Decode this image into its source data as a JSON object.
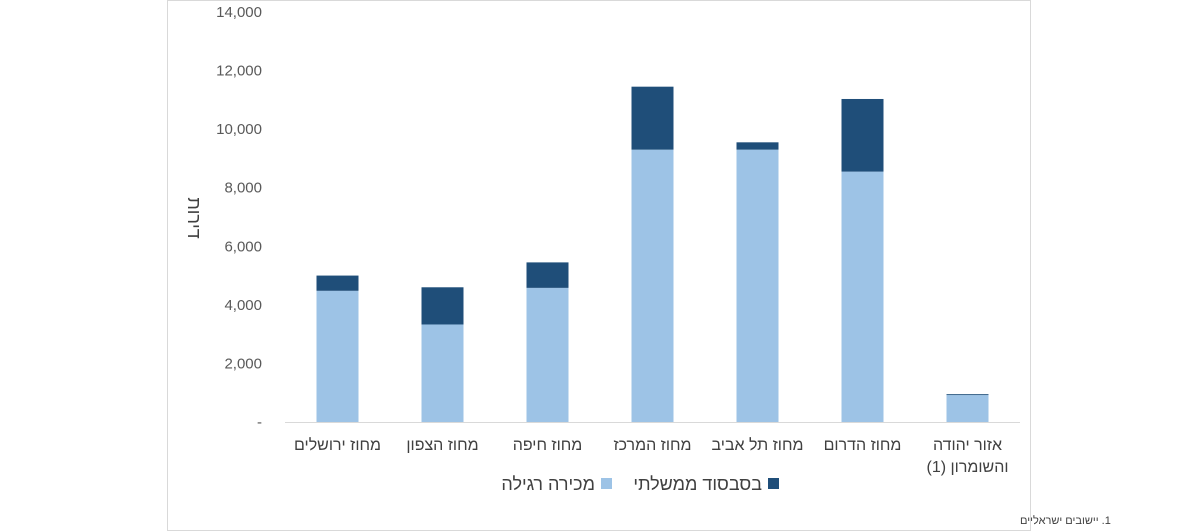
{
  "chart_data": {
    "type": "bar",
    "stacked": true,
    "ylabel": "דירות",
    "ylim": [
      0,
      14000
    ],
    "yticks": [
      0,
      2000,
      4000,
      6000,
      8000,
      10000,
      12000,
      14000
    ],
    "ytick_labels": [
      "-",
      "2,000",
      "4,000",
      "6,000",
      "8,000",
      "10,000",
      "12,000",
      "14,000"
    ],
    "categories": [
      [
        "מחוז ירושלים"
      ],
      [
        "מחוז הצפון"
      ],
      [
        "מחוז חיפה"
      ],
      [
        "מחוז המרכז"
      ],
      [
        "מחוז תל אביב"
      ],
      [
        "מחוז הדרום"
      ],
      [
        "אזור יהודה",
        "והשומרון (1)"
      ]
    ],
    "series": [
      {
        "name": "מכירה רגילה",
        "color": "#9dc3e6",
        "values": [
          4480,
          3330,
          4580,
          9300,
          9300,
          8550,
          920
        ]
      },
      {
        "name": "בסבסוד ממשלתי",
        "color": "#1f4e79",
        "values": [
          520,
          1270,
          870,
          2150,
          250,
          2480,
          30
        ]
      }
    ],
    "legend_position": "bottom",
    "grid": false,
    "footnote": "1. יישובים ישראליים"
  }
}
